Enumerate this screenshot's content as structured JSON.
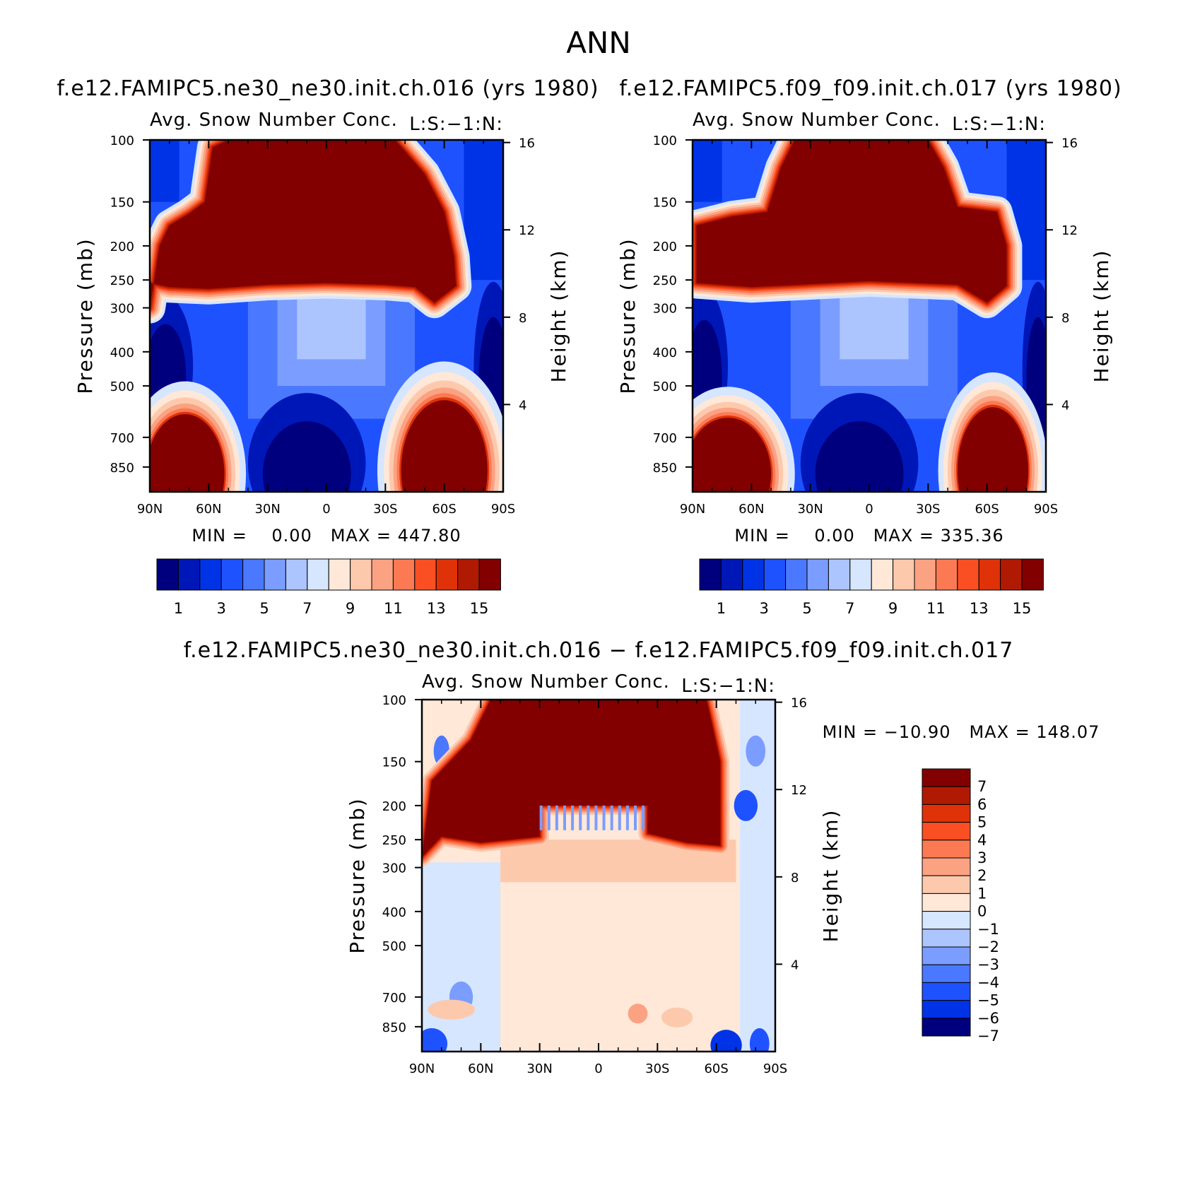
{
  "chart_data": [
    {
      "type": "heatmap",
      "id": "model1",
      "run_title": "f.e12.FAMIPC5.ne30_ne30.init.ch.016 (yrs 1980)",
      "variable_title": "Avg. Snow Number Conc.",
      "corner_label": "L:S:−1:N:",
      "xlabel": "",
      "ylabel": "Pressure (mb)",
      "y2label": "Height (km)",
      "x_ticks": [
        "90N",
        "60N",
        "30N",
        "0",
        "30S",
        "60S",
        "90S"
      ],
      "x_range": [
        90,
        -90
      ],
      "y_ticks": [
        "100",
        "150",
        "200",
        "250",
        "300",
        "400",
        "500",
        "700",
        "850"
      ],
      "y_tick_values": [
        100,
        150,
        200,
        250,
        300,
        400,
        500,
        700,
        850
      ],
      "y_range": [
        100,
        1000
      ],
      "y2_ticks": [
        "16",
        "12",
        "8",
        "4"
      ],
      "y2_tick_values": [
        16,
        12,
        8,
        4
      ],
      "minmax_text": "MIN =    0.00   MAX = 447.80",
      "stats": {
        "min": 0.0,
        "max": 447.8
      },
      "colorbar_labels": [
        "1",
        "3",
        "5",
        "7",
        "9",
        "11",
        "13",
        "15"
      ],
      "levels": 16,
      "top_layer_edge": [
        {
          "lat": 90,
          "p": 300
        },
        {
          "lat": 85,
          "p": 200
        },
        {
          "lat": 80,
          "p": 175
        },
        {
          "lat": 70,
          "p": 162
        },
        {
          "lat": 62,
          "p": 150
        },
        {
          "lat": 58,
          "p": 105
        },
        {
          "lat": 50,
          "p": 100
        },
        {
          "lat": -35,
          "p": 100
        },
        {
          "lat": -50,
          "p": 125
        },
        {
          "lat": -60,
          "p": 160
        },
        {
          "lat": -65,
          "p": 215
        },
        {
          "lat": -66,
          "p": 260
        },
        {
          "lat": -55,
          "p": 290
        },
        {
          "lat": -45,
          "p": 262
        },
        {
          "lat": -30,
          "p": 258
        },
        {
          "lat": 0,
          "p": 255
        },
        {
          "lat": 30,
          "p": 258
        },
        {
          "lat": 60,
          "p": 265
        },
        {
          "lat": 80,
          "p": 262
        },
        {
          "lat": 90,
          "p": 255
        }
      ],
      "surface_blobs": [
        {
          "lat": 72,
          "p": 890,
          "dlat": 20,
          "dp_frac": 0.17,
          "level": 15
        },
        {
          "lat": -60,
          "p": 870,
          "dlat": 22,
          "dp_frac": 0.2,
          "level": 15
        }
      ],
      "dark_blue_regions": [
        {
          "lat": 10,
          "p": 830,
          "dlat": 30,
          "dp_frac": 0.2
        },
        {
          "lat": 82,
          "p": 440,
          "dlat": 14,
          "dp_frac": 0.2
        },
        {
          "lat": -85,
          "p": 450,
          "dlat": 10,
          "dp_frac": 0.25
        }
      ]
    },
    {
      "type": "heatmap",
      "id": "model2",
      "run_title": "f.e12.FAMIPC5.f09_f09.init.ch.017 (yrs 1980)",
      "variable_title": "Avg. Snow Number Conc.",
      "corner_label": "L:S:−1:N:",
      "xlabel": "",
      "ylabel": "Pressure (mb)",
      "y2label": "Height (km)",
      "x_ticks": [
        "90N",
        "60N",
        "30N",
        "0",
        "30S",
        "60S",
        "90S"
      ],
      "x_range": [
        90,
        -90
      ],
      "y_ticks": [
        "100",
        "150",
        "200",
        "250",
        "300",
        "400",
        "500",
        "700",
        "850"
      ],
      "y_tick_values": [
        100,
        150,
        200,
        250,
        300,
        400,
        500,
        700,
        850
      ],
      "y_range": [
        100,
        1000
      ],
      "y2_ticks": [
        "16",
        "12",
        "8",
        "4"
      ],
      "y2_tick_values": [
        16,
        12,
        8,
        4
      ],
      "minmax_text": "MIN =    0.00   MAX = 335.36",
      "stats": {
        "min": 0.0,
        "max": 335.36
      },
      "colorbar_labels": [
        "1",
        "3",
        "5",
        "7",
        "9",
        "11",
        "13",
        "15"
      ],
      "levels": 16,
      "top_layer_edge": [
        {
          "lat": 88,
          "p": 255
        },
        {
          "lat": 88,
          "p": 175
        },
        {
          "lat": 70,
          "p": 165
        },
        {
          "lat": 52,
          "p": 160
        },
        {
          "lat": 45,
          "p": 120
        },
        {
          "lat": 38,
          "p": 100
        },
        {
          "lat": -30,
          "p": 100
        },
        {
          "lat": -38,
          "p": 120
        },
        {
          "lat": -45,
          "p": 155
        },
        {
          "lat": -65,
          "p": 160
        },
        {
          "lat": -70,
          "p": 200
        },
        {
          "lat": -70,
          "p": 260
        },
        {
          "lat": -60,
          "p": 290
        },
        {
          "lat": -45,
          "p": 258
        },
        {
          "lat": 0,
          "p": 252
        },
        {
          "lat": 60,
          "p": 262
        }
      ],
      "surface_blobs": [
        {
          "lat": 72,
          "p": 890,
          "dlat": 22,
          "dp_frac": 0.16,
          "level": 15
        },
        {
          "lat": -63,
          "p": 870,
          "dlat": 18,
          "dp_frac": 0.18,
          "level": 15
        }
      ],
      "dark_blue_regions": [
        {
          "lat": 5,
          "p": 830,
          "dlat": 30,
          "dp_frac": 0.2
        },
        {
          "lat": 84,
          "p": 440,
          "dlat": 12,
          "dp_frac": 0.22
        },
        {
          "lat": -86,
          "p": 450,
          "dlat": 8,
          "dp_frac": 0.25
        }
      ]
    },
    {
      "type": "heatmap",
      "id": "difference",
      "run_title": "f.e12.FAMIPC5.ne30_ne30.init.ch.016 − f.e12.FAMIPC5.f09_f09.init.ch.017",
      "variable_title": "Avg. Snow Number Conc.",
      "corner_label": "L:S:−1:N:",
      "xlabel": "",
      "ylabel": "Pressure (mb)",
      "y2label": "Height (km)",
      "x_ticks": [
        "90N",
        "60N",
        "30N",
        "0",
        "30S",
        "60S",
        "90S"
      ],
      "x_range": [
        90,
        -90
      ],
      "y_ticks": [
        "100",
        "150",
        "200",
        "250",
        "300",
        "400",
        "500",
        "700",
        "850"
      ],
      "y_tick_values": [
        100,
        150,
        200,
        250,
        300,
        400,
        500,
        700,
        850
      ],
      "y_range": [
        100,
        1000
      ],
      "y2_ticks": [
        "16",
        "12",
        "8",
        "4"
      ],
      "y2_tick_values": [
        16,
        12,
        8,
        4
      ],
      "minmax_text": "MIN = −10.90   MAX = 148.07",
      "stats": {
        "min": -10.9,
        "max": 148.07
      },
      "colorbar_labels": [
        "7",
        "6",
        "5",
        "4",
        "3",
        "2",
        "1",
        "0",
        "−1",
        "−2",
        "−3",
        "−4",
        "−5",
        "−6",
        "−7"
      ],
      "colorbar_values": [
        7,
        6,
        5,
        4,
        3,
        2,
        1,
        0,
        -1,
        -2,
        -3,
        -4,
        -5,
        -6,
        -7
      ],
      "top_layer_edge": [
        {
          "lat": 90,
          "p": 280
        },
        {
          "lat": 85,
          "p": 170
        },
        {
          "lat": 65,
          "p": 130
        },
        {
          "lat": 55,
          "p": 100
        },
        {
          "lat": -55,
          "p": 100
        },
        {
          "lat": -62,
          "p": 150
        },
        {
          "lat": -62,
          "p": 260
        },
        {
          "lat": -45,
          "p": 255
        },
        {
          "lat": -25,
          "p": 240
        },
        {
          "lat": -25,
          "p": 200
        },
        {
          "lat": 30,
          "p": 200
        },
        {
          "lat": 30,
          "p": 245
        },
        {
          "lat": 60,
          "p": 255
        },
        {
          "lat": 80,
          "p": 245
        }
      ],
      "pos_region": {
        "lat_from": 50,
        "lat_to": -72,
        "p_from": 280,
        "p_to": 920,
        "value": 0.5
      },
      "neg_regions": [
        {
          "lat_from": 90,
          "lat_to": 50,
          "p_from": 290,
          "p_to": 1000,
          "value": -0.5
        },
        {
          "lat_from": -72,
          "lat_to": -90,
          "p_from": 100,
          "p_to": 1000,
          "value": -0.5
        }
      ]
    }
  ],
  "figure": {
    "title": "ANN",
    "panel_ids": [
      "model1",
      "model2",
      "difference"
    ],
    "colors": {
      "seq16": [
        "#00007f",
        "#0017b8",
        "#0033e6",
        "#1f52ff",
        "#4a78ff",
        "#7a9dff",
        "#acc5ff",
        "#d6e6ff",
        "#ffe8d8",
        "#fdc9ad",
        "#fba283",
        "#fb7a54",
        "#f94f23",
        "#df3208",
        "#b11a02",
        "#820000"
      ],
      "div15": [
        "#820000",
        "#b11a02",
        "#df3208",
        "#f94f23",
        "#fb7a54",
        "#fba283",
        "#fdc9ad",
        "#ffe8d8",
        "#d6e6ff",
        "#acc5ff",
        "#7a9dff",
        "#4a78ff",
        "#1f52ff",
        "#0033e6",
        "#00007f"
      ]
    }
  }
}
